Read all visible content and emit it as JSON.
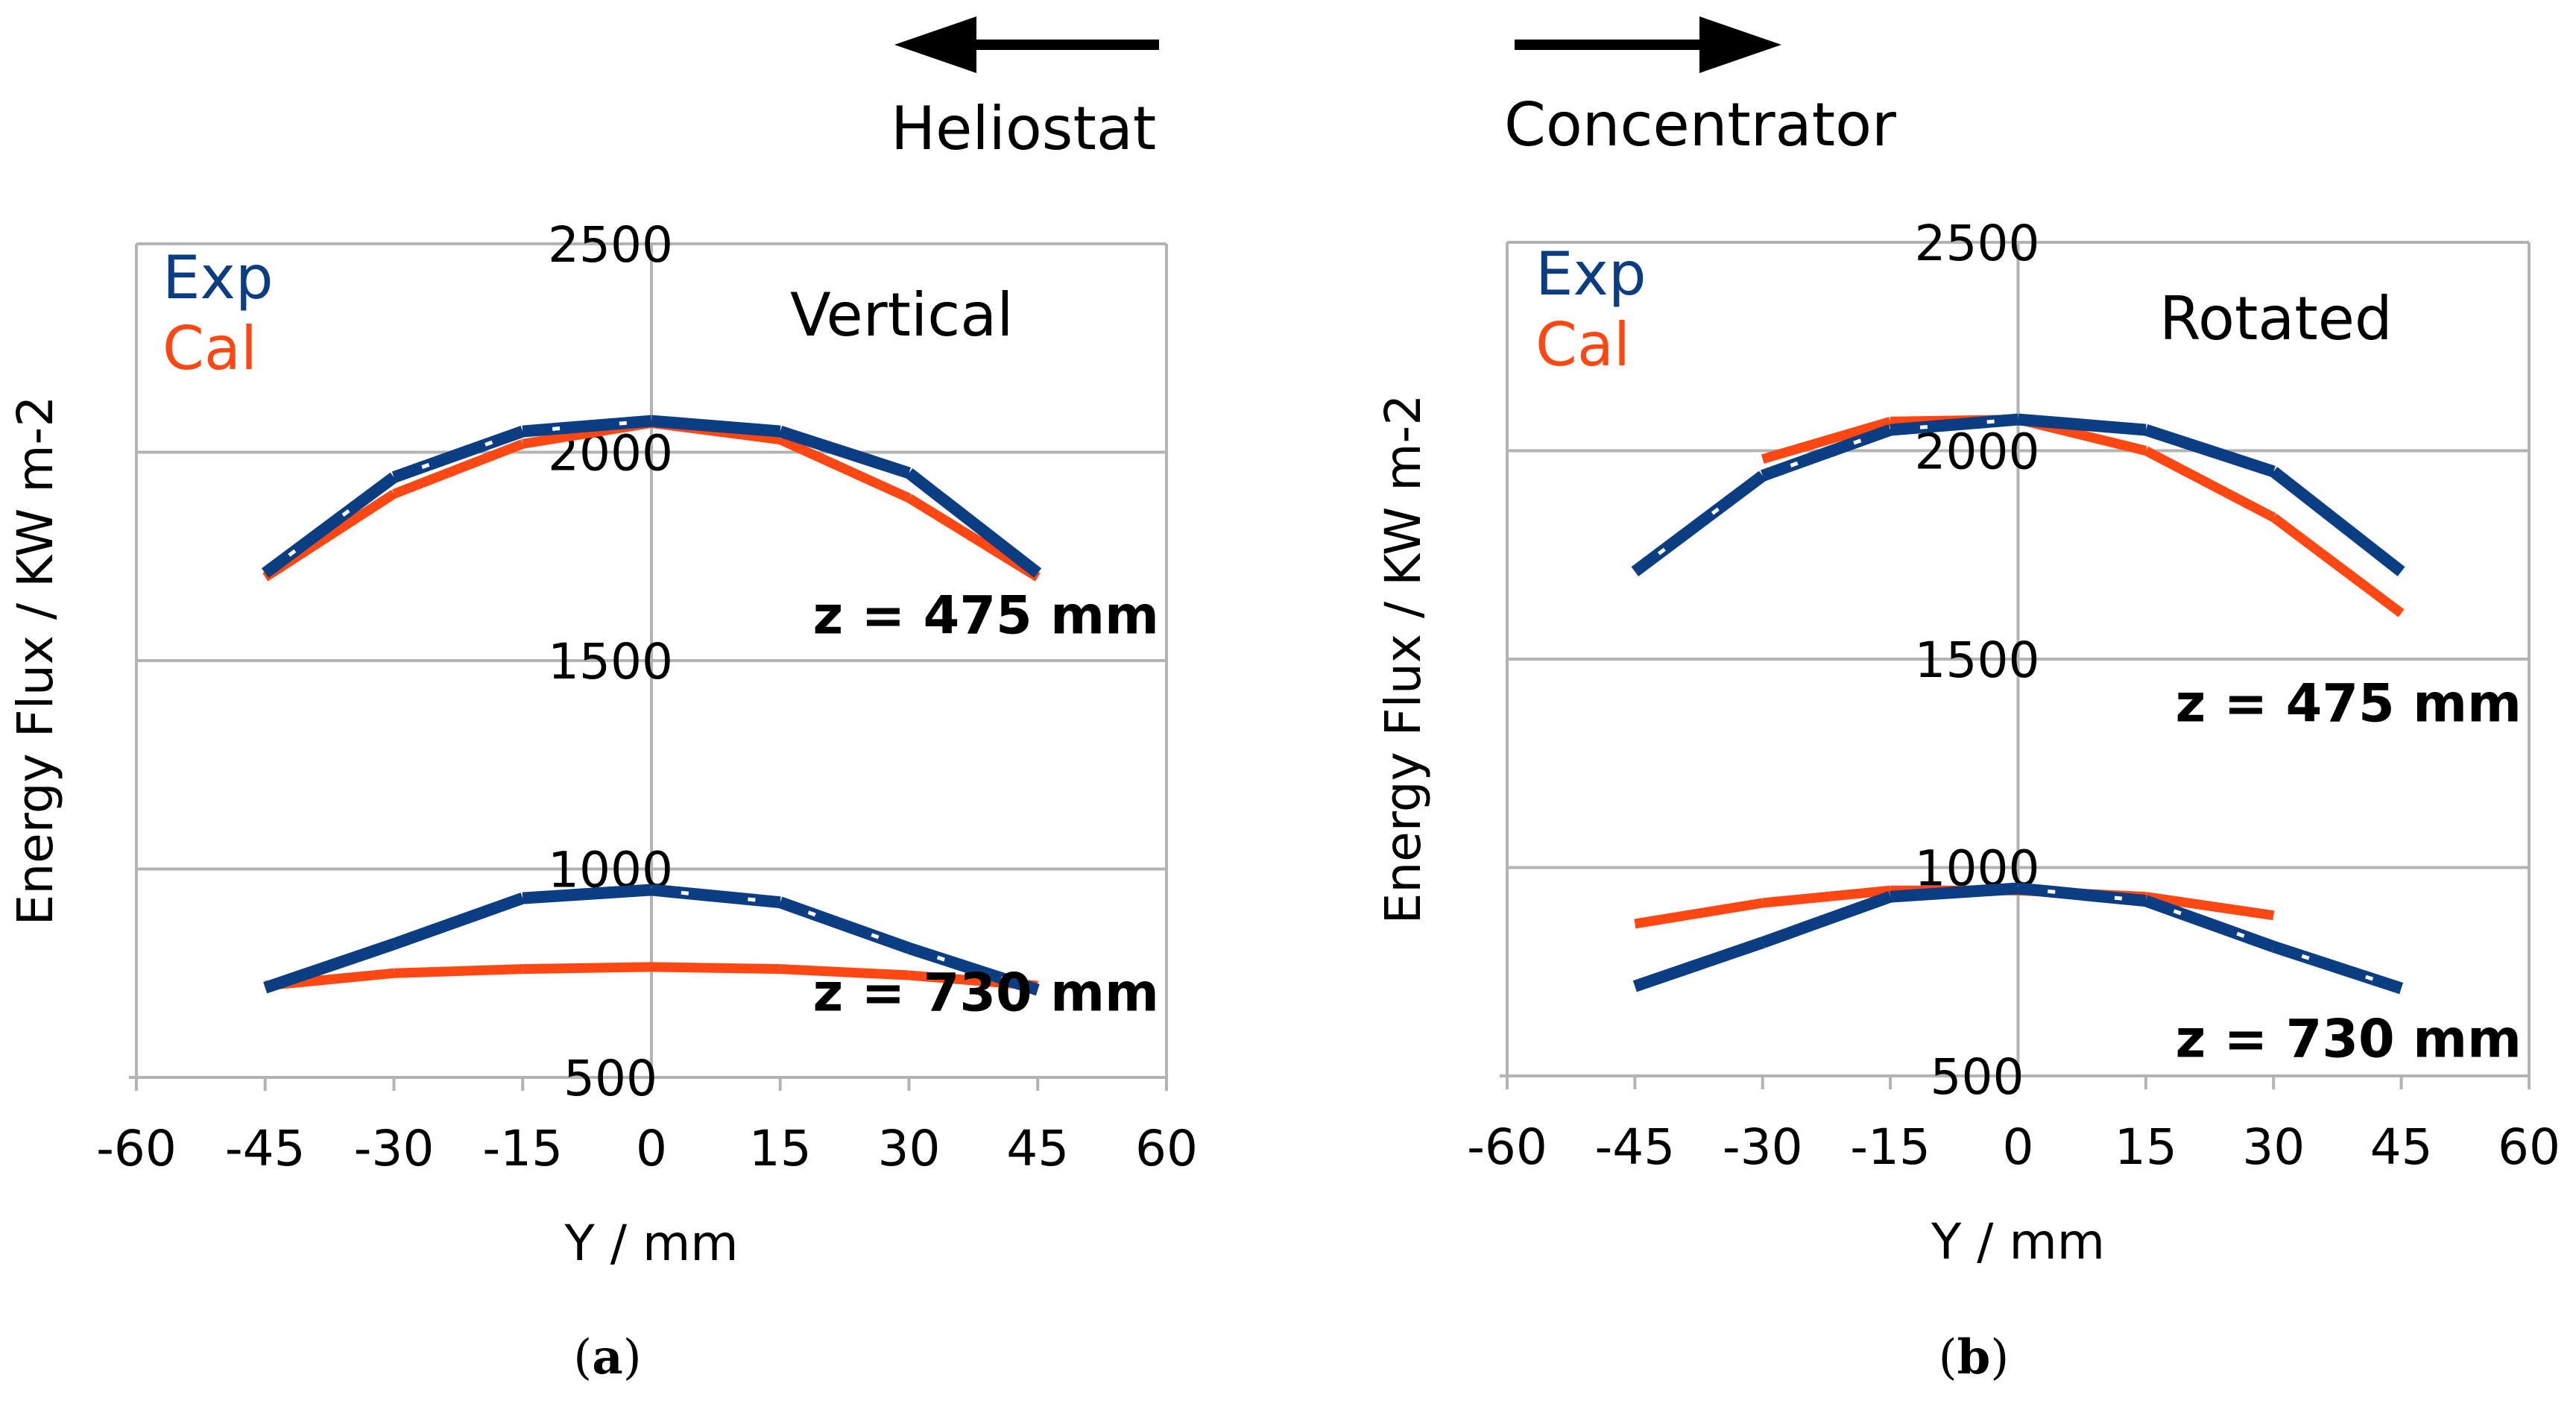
{
  "header": {
    "left_arrow_label": "Heliostat",
    "right_arrow_label": "Concentrator"
  },
  "colors": {
    "exp": "#0a3d82",
    "cal": "#ff4713",
    "grid": "#b3b3b3",
    "dash": "#ffffff"
  },
  "chart_data": [
    {
      "type": "line",
      "panel_title": "Vertical",
      "caption_letter": "a",
      "xlabel": "Y / mm",
      "ylabel": "Energy Flux / KW m-2",
      "xlim": [
        -60,
        60
      ],
      "ylim": [
        500,
        2500
      ],
      "x_ticks": [
        -60,
        -45,
        -30,
        -15,
        0,
        15,
        30,
        45,
        60
      ],
      "x_tick_labels": [
        "-60",
        "-45",
        "-30",
        "-15",
        "0",
        "15",
        "30",
        "45",
        "60"
      ],
      "y_ticks": [
        500,
        1000,
        1500,
        2000,
        2500
      ],
      "y_tick_labels": [
        "500",
        "1000",
        "1500",
        "2000",
        "2500"
      ],
      "legend": [
        {
          "name": "Exp",
          "key": "exp"
        },
        {
          "name": "Cal",
          "key": "cal"
        }
      ],
      "annotations": [
        {
          "text": "z = 475 mm",
          "x": 45,
          "y": 1610
        },
        {
          "text": "z = 730 mm",
          "x": 45,
          "y": 705
        }
      ],
      "series": [
        {
          "name": "Cal",
          "group": "z = 475 mm",
          "x": [
            -45,
            -30,
            -15,
            0,
            15,
            30,
            45
          ],
          "values": [
            1700,
            1900,
            2020,
            2070,
            2030,
            1890,
            1700
          ],
          "dashed_segments": []
        },
        {
          "name": "Exp",
          "group": "z = 475 mm",
          "x": [
            -45,
            -30,
            -15,
            0,
            15,
            30,
            45
          ],
          "values": [
            1710,
            1940,
            2050,
            2075,
            2050,
            1950,
            1710
          ],
          "dashed_segments": [
            0,
            1,
            2
          ]
        },
        {
          "name": "Cal",
          "group": "z = 730 mm",
          "x": [
            -45,
            -30,
            -15,
            0,
            15,
            30,
            45
          ],
          "values": [
            720,
            750,
            760,
            765,
            760,
            745,
            720
          ],
          "dashed_segments": []
        },
        {
          "name": "Exp",
          "group": "z = 730 mm",
          "x": [
            -45,
            -30,
            -15,
            0,
            15,
            30,
            45
          ],
          "values": [
            715,
            820,
            930,
            950,
            920,
            810,
            710
          ],
          "dashed_segments": [
            3,
            4,
            5
          ]
        }
      ]
    },
    {
      "type": "line",
      "panel_title": "Rotated",
      "caption_letter": "b",
      "xlabel": "Y / mm",
      "ylabel": "Energy Flux / KW m-2",
      "xlim": [
        -60,
        60
      ],
      "ylim": [
        500,
        2500
      ],
      "x_ticks": [
        -60,
        -45,
        -30,
        -15,
        0,
        15,
        30,
        45,
        60
      ],
      "x_tick_labels": [
        "-60",
        "-45",
        "-30",
        "-15",
        "0",
        "15",
        "30",
        "45",
        "60"
      ],
      "y_ticks": [
        500,
        1000,
        1500,
        2000,
        2500
      ],
      "y_tick_labels": [
        "500",
        "1000",
        "1500",
        "2000",
        "2500"
      ],
      "legend": [
        {
          "name": "Exp",
          "key": "exp"
        },
        {
          "name": "Cal",
          "key": "cal"
        }
      ],
      "annotations": [
        {
          "text": "z = 475 mm",
          "x": 45,
          "y": 1395
        },
        {
          "text": "z = 730 mm",
          "x": 45,
          "y": 590
        }
      ],
      "series": [
        {
          "name": "Cal",
          "group": "z = 475 mm",
          "x": [
            -30,
            -15,
            0,
            15,
            30,
            45
          ],
          "values": [
            1980,
            2070,
            2075,
            2000,
            1840,
            1610
          ],
          "dashed_segments": []
        },
        {
          "name": "Exp",
          "group": "z = 475 mm",
          "x": [
            -45,
            -30,
            -15,
            0,
            15,
            30,
            45
          ],
          "values": [
            1710,
            1940,
            2050,
            2075,
            2050,
            1950,
            1710
          ],
          "dashed_segments": [
            0,
            1,
            2
          ]
        },
        {
          "name": "Cal",
          "group": "z = 730 mm",
          "x": [
            -45,
            -30,
            -15,
            0,
            15,
            30
          ],
          "values": [
            865,
            915,
            945,
            945,
            930,
            885
          ],
          "dashed_segments": []
        },
        {
          "name": "Exp",
          "group": "z = 730 mm",
          "x": [
            -45,
            -30,
            -15,
            0,
            15,
            30,
            45
          ],
          "values": [
            715,
            820,
            930,
            950,
            920,
            810,
            710
          ],
          "dashed_segments": [
            3,
            4,
            5
          ]
        }
      ]
    }
  ]
}
